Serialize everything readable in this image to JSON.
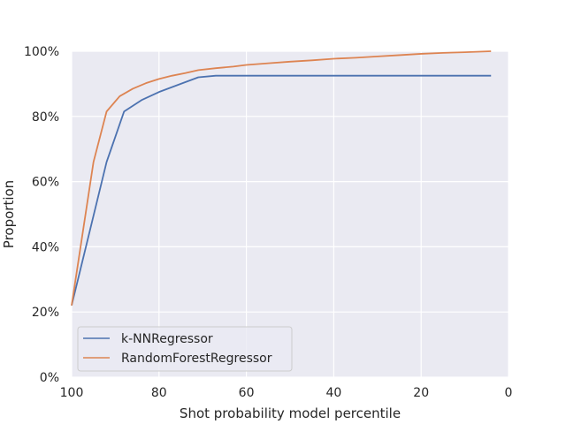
{
  "chart_data": {
    "type": "line",
    "title": "",
    "xlabel": "Shot probability model percentile",
    "ylabel": "Proportion",
    "xlim": [
      100,
      0
    ],
    "ylim": [
      0,
      1
    ],
    "x_ticks": [
      100,
      80,
      60,
      40,
      20,
      0
    ],
    "x_tick_labels": [
      "100",
      "80",
      "60",
      "40",
      "20",
      "0"
    ],
    "y_ticks": [
      0,
      0.2,
      0.4,
      0.6,
      0.8,
      1.0
    ],
    "y_tick_labels": [
      "0%",
      "20%",
      "40%",
      "60%",
      "80%",
      "100%"
    ],
    "grid": true,
    "legend_position": "lower-left",
    "series": [
      {
        "name": "k-NNRegressor",
        "color": "#4c72b0",
        "x": [
          100,
          92,
          88,
          84,
          80,
          75,
          71,
          67,
          60,
          50,
          40,
          30,
          20,
          10,
          4
        ],
        "y": [
          0.22,
          0.66,
          0.815,
          0.85,
          0.875,
          0.9,
          0.92,
          0.925,
          0.925,
          0.925,
          0.925,
          0.925,
          0.925,
          0.925,
          0.925
        ]
      },
      {
        "name": "RandomForestRegressor",
        "color": "#dd8452",
        "x": [
          100,
          95,
          92,
          89,
          86,
          83,
          80,
          77,
          74,
          71,
          67,
          63,
          60,
          55,
          50,
          45,
          40,
          35,
          30,
          25,
          20,
          15,
          10,
          4
        ],
        "y": [
          0.22,
          0.66,
          0.815,
          0.862,
          0.885,
          0.902,
          0.915,
          0.925,
          0.933,
          0.942,
          0.948,
          0.953,
          0.958,
          0.963,
          0.968,
          0.972,
          0.977,
          0.98,
          0.984,
          0.988,
          0.992,
          0.995,
          0.997,
          1.0
        ]
      }
    ]
  }
}
